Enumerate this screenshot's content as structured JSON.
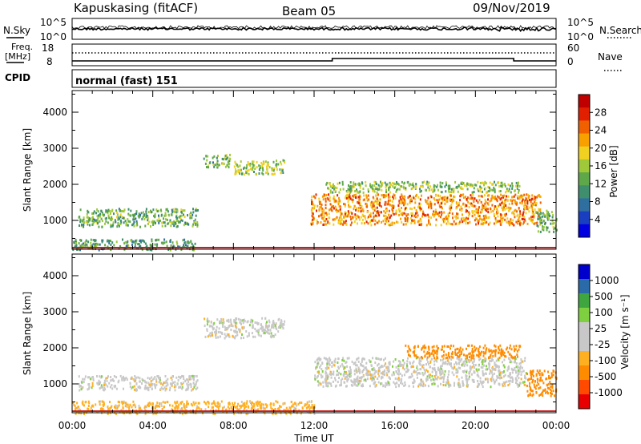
{
  "header": {
    "station": "Kapuskasing (fitACF)",
    "beam": "Beam 05",
    "date": "09/Nov/2019"
  },
  "panels": {
    "noise": {
      "left_label": "N.Sky",
      "left_ticks": [
        "10^5",
        "10^0"
      ],
      "right_label": "N.Search",
      "right_ticks": [
        "10^5",
        "10^0"
      ]
    },
    "freq": {
      "left_label_1": "Freq.",
      "left_label_2": "[MHz]",
      "left_ticks": [
        "18",
        "8"
      ],
      "right_label": "Nave",
      "right_ticks": [
        "60",
        "0"
      ]
    },
    "cpid": {
      "label": "CPID",
      "value": "normal (fast) 151"
    }
  },
  "colors": {
    "background": "#ffffff",
    "ground_scatter": "#c8c8c8",
    "power_scale": [
      "#0000e0",
      "#1a3ec0",
      "#2f6fa0",
      "#3f8f6e",
      "#5fa84a",
      "#a0c93a",
      "#f0d020",
      "#f7a000",
      "#f06000",
      "#e02000",
      "#c00000"
    ],
    "velocity_scale": [
      "#e80000",
      "#ff4a00",
      "#ff8c00",
      "#ffb020",
      "#c8c8c8",
      "#c8c8c8",
      "#7fd040",
      "#3fa63f",
      "#2a6aa8",
      "#0000cc"
    ]
  },
  "chart_data": [
    {
      "type": "heatmap",
      "name": "power",
      "ylabel": "Slant Range [km]",
      "yticks": [
        "1000",
        "2000",
        "3000",
        "4000"
      ],
      "ylim": [
        200,
        4600
      ],
      "xticks": [
        "00:00",
        "04:00",
        "08:00",
        "12:00",
        "16:00",
        "20:00",
        "00:00"
      ],
      "xlim_hours": [
        0,
        24
      ],
      "colorbar_label": "Power [dB]",
      "colorbar_ticks": [
        "4",
        "8",
        "12",
        "16",
        "20",
        "24",
        "28"
      ],
      "colorbar_range": [
        0,
        30
      ],
      "features": [
        {
          "t0": 0.0,
          "t1": 6.2,
          "r0": 200,
          "r1": 500,
          "value": 10
        },
        {
          "t0": 0.3,
          "t1": 6.2,
          "r0": 850,
          "r1": 1350,
          "value": 12
        },
        {
          "t0": 6.5,
          "t1": 7.8,
          "r0": 2500,
          "r1": 2850,
          "value": 12
        },
        {
          "t0": 8.0,
          "t1": 10.5,
          "r0": 2300,
          "r1": 2700,
          "value": 14
        },
        {
          "t0": 11.8,
          "t1": 23.2,
          "r0": 900,
          "r1": 1750,
          "value": 22
        },
        {
          "t0": 12.5,
          "t1": 22.2,
          "r0": 1800,
          "r1": 2100,
          "value": 14
        },
        {
          "t0": 23.0,
          "t1": 24.0,
          "r0": 700,
          "r1": 1300,
          "value": 12
        }
      ]
    },
    {
      "type": "heatmap",
      "name": "velocity",
      "ylabel": "Slant Range [km]",
      "yticks": [
        "1000",
        "2000",
        "3000",
        "4000"
      ],
      "ylim": [
        200,
        4600
      ],
      "xticks": [
        "00:00",
        "04:00",
        "08:00",
        "12:00",
        "16:00",
        "20:00",
        "00:00"
      ],
      "xlabel": "Time UT",
      "xlim_hours": [
        0,
        24
      ],
      "colorbar_label": "Velocity [m s⁻¹]",
      "colorbar_ticks": [
        "1000",
        "500",
        "100",
        "25",
        "-25",
        "-100",
        "-500",
        "-1000"
      ],
      "features": [
        {
          "t0": 0.0,
          "t1": 12.0,
          "r0": 200,
          "r1": 550,
          "value": -50
        },
        {
          "t0": 0.3,
          "t1": 6.2,
          "r0": 850,
          "r1": 1250,
          "value": 0
        },
        {
          "t0": 6.5,
          "t1": 10.5,
          "r0": 2300,
          "r1": 2850,
          "value": 0
        },
        {
          "t0": 12.0,
          "t1": 22.5,
          "r0": 950,
          "r1": 1750,
          "value": 0
        },
        {
          "t0": 16.5,
          "t1": 22.2,
          "r0": 1750,
          "r1": 2100,
          "value": -150
        },
        {
          "t0": 22.5,
          "t1": 24.0,
          "r0": 700,
          "r1": 1400,
          "value": -300
        }
      ]
    }
  ]
}
